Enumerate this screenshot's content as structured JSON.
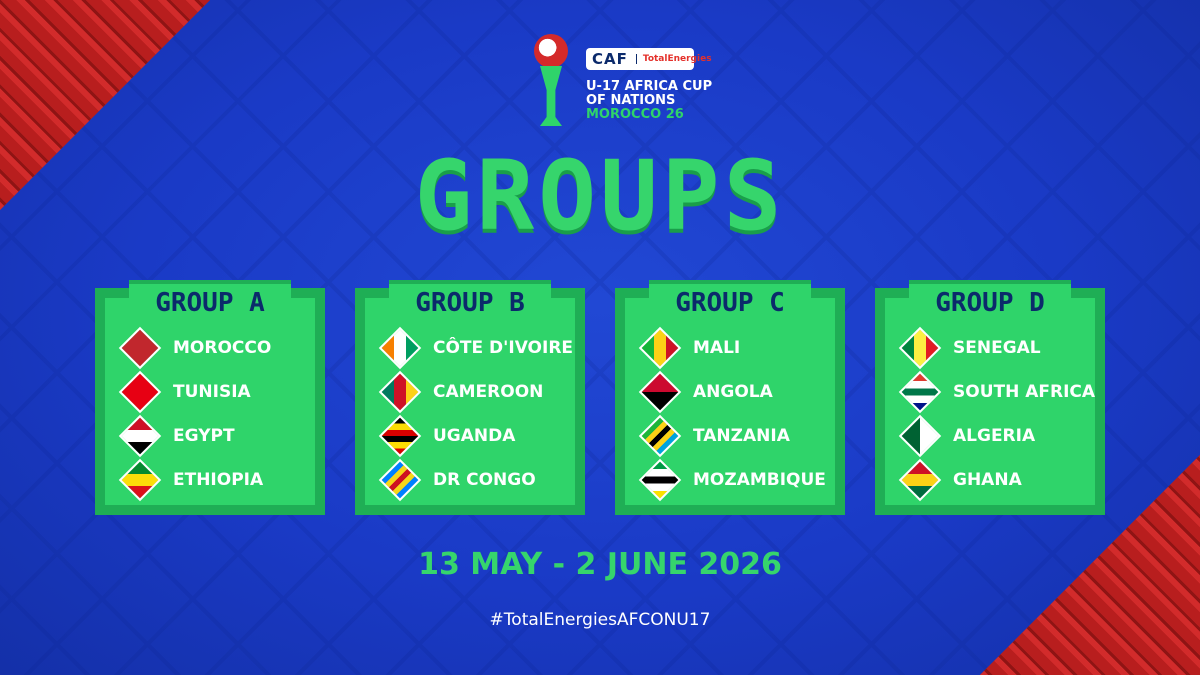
{
  "logo": {
    "caf": "CAF",
    "sponsor": "TotalEnergies",
    "line1": "U-17 AFRICA CUP",
    "line2": "OF NATIONS",
    "line3": "MOROCCO 26"
  },
  "title": "GROUPS",
  "groups": [
    {
      "name": "GROUP A",
      "teams": [
        {
          "name": "MOROCCO",
          "flag": {
            "dir": "180deg",
            "colors": [
              "#c1272d",
              "#c1272d"
            ]
          }
        },
        {
          "name": "TUNISIA",
          "flag": {
            "dir": "180deg",
            "colors": [
              "#e70013",
              "#e70013"
            ]
          }
        },
        {
          "name": "EGYPT",
          "flag": {
            "dir": "135deg",
            "colors": [
              "#ce1126",
              "#ffffff",
              "#000000"
            ]
          }
        },
        {
          "name": "ETHIOPIA",
          "flag": {
            "dir": "135deg",
            "colors": [
              "#078930",
              "#fcdd09",
              "#da121a"
            ]
          }
        }
      ]
    },
    {
      "name": "GROUP B",
      "teams": [
        {
          "name": "CÔTE D'IVOIRE",
          "flag": {
            "dir": "45deg",
            "colors": [
              "#f77f00",
              "#ffffff",
              "#009e60"
            ]
          }
        },
        {
          "name": "CAMEROON",
          "flag": {
            "dir": "45deg",
            "colors": [
              "#007a5e",
              "#ce1126",
              "#fcd116"
            ]
          }
        },
        {
          "name": "UGANDA",
          "flag": {
            "dir": "135deg",
            "colors": [
              "#000000",
              "#fcdc04",
              "#d90000",
              "#000000",
              "#fcdc04",
              "#d90000"
            ]
          }
        },
        {
          "name": "DR CONGO",
          "flag": {
            "dir": "90deg",
            "colors": [
              "#007fff",
              "#f7d618",
              "#ce1021",
              "#f7d618",
              "#007fff"
            ]
          }
        }
      ]
    },
    {
      "name": "GROUP C",
      "teams": [
        {
          "name": "MALI",
          "flag": {
            "dir": "45deg",
            "colors": [
              "#14b53a",
              "#fcd116",
              "#ce1126"
            ]
          }
        },
        {
          "name": "ANGOLA",
          "flag": {
            "dir": "135deg",
            "colors": [
              "#cc092f",
              "#000000"
            ]
          }
        },
        {
          "name": "TANZANIA",
          "flag": {
            "dir": "90deg",
            "colors": [
              "#1eb53a",
              "#fcd116",
              "#000000",
              "#fcd116",
              "#00a3dd"
            ]
          }
        },
        {
          "name": "MOZAMBIQUE",
          "flag": {
            "dir": "135deg",
            "colors": [
              "#009a44",
              "#ffffff",
              "#000000",
              "#ffffff",
              "#fce100"
            ]
          }
        }
      ]
    },
    {
      "name": "GROUP D",
      "teams": [
        {
          "name": "SENEGAL",
          "flag": {
            "dir": "45deg",
            "colors": [
              "#00853f",
              "#fdef42",
              "#e31b23"
            ]
          }
        },
        {
          "name": "SOUTH AFRICA",
          "flag": {
            "dir": "135deg",
            "colors": [
              "#e03c31",
              "#ffffff",
              "#007749",
              "#ffffff",
              "#001489"
            ]
          }
        },
        {
          "name": "ALGERIA",
          "flag": {
            "dir": "45deg",
            "colors": [
              "#006233",
              "#ffffff"
            ]
          }
        },
        {
          "name": "GHANA",
          "flag": {
            "dir": "135deg",
            "colors": [
              "#ce1126",
              "#fcd116",
              "#006b3f"
            ]
          }
        }
      ]
    }
  ],
  "date": "13 MAY - 2 JUNE 2026",
  "hashtag": "#TotalEnergiesAFCONU17",
  "colors": {
    "background": "#1a3ac6",
    "card": "#2fd46a",
    "group_title": "#0b2a6b",
    "accent": "#36d56c",
    "corner": "#b81e1e"
  }
}
